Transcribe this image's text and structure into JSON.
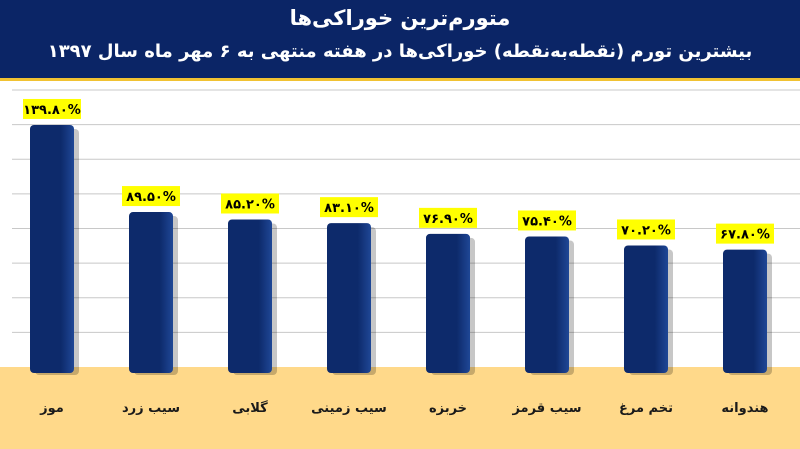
{
  "header": {
    "title": "متورم‌ترین خوراکی‌ها",
    "subtitle": "بیشترین تورم (نقطه‌به‌نقطه) خوراکی‌ها در هفته منتهی به ۶ مهر ماه سال ۱۳۹۷"
  },
  "colors": {
    "header_bg": "#0b2566",
    "bar": "#0d2a6b",
    "bar_highlight": "#1f4796",
    "floor": "#ffd98a",
    "data_label_bg": "#ffff00",
    "gridline": "#c8c8c8"
  },
  "chart_data": {
    "type": "bar",
    "categories": [
      "موز",
      "سیب زرد",
      "گلابی",
      "سیب زمینی",
      "خربزه",
      "سیب قرمز",
      "تخم مرغ",
      "هندوانه"
    ],
    "values": [
      139.8,
      89.5,
      85.2,
      83.1,
      76.9,
      75.4,
      70.2,
      67.8
    ],
    "data_labels": [
      "۱۳۹.۸۰%",
      "۸۹.۵۰%",
      "۸۵.۲۰%",
      "۸۳.۱۰%",
      "۷۶.۹۰%",
      "۷۵.۴۰%",
      "۷۰.۲۰%",
      "۶۷.۸۰%"
    ],
    "ylim": [
      0,
      160
    ],
    "grid": true,
    "legend": "none",
    "title": "",
    "xlabel": "",
    "ylabel": ""
  }
}
